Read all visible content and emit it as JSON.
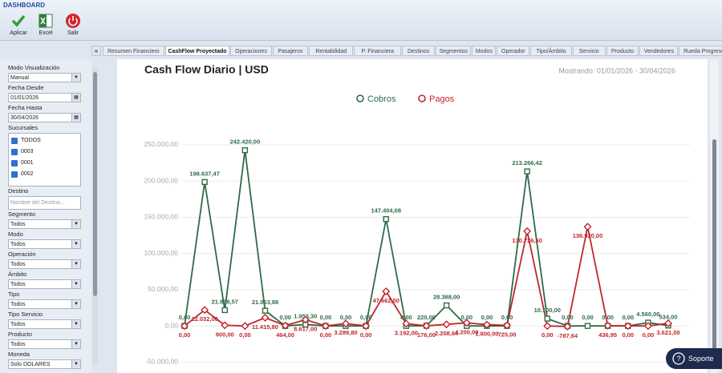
{
  "header": {
    "title": "DASHBOARD",
    "buttons": [
      "Aplicar",
      "Excel",
      "Salir"
    ]
  },
  "tabs": {
    "items": [
      "Resumen Financiero",
      "CashFlow Proyectado",
      "Operaciones",
      "Pasajeros",
      "Rentabilidad",
      "P. Financiera",
      "Destinos",
      "Segmentos",
      "Modos",
      "Operador",
      "Tipo/Ámbito",
      "Servicio",
      "Producto",
      "Vendedores",
      "Rueda Progreso"
    ],
    "active": 1
  },
  "sidebar": {
    "items": [
      {
        "label": "Modo Visualización",
        "value": "Manual",
        "kind": "select"
      },
      {
        "label": "Fecha Desde",
        "value": "01/01/2026",
        "kind": "date"
      },
      {
        "label": "Fecha Hasta",
        "value": "30/04/2026",
        "kind": "date"
      },
      {
        "label": "Sucursales",
        "options": [
          "TODOS",
          "0003",
          "0001",
          "0002"
        ],
        "kind": "checklist"
      },
      {
        "label": "Destino",
        "placeholder": "Nombre del Destino...",
        "kind": "text"
      },
      {
        "label": "Segmento",
        "value": "Todos",
        "kind": "select"
      },
      {
        "label": "Modo",
        "value": "Todos",
        "kind": "select"
      },
      {
        "label": "Operación",
        "value": "Todos",
        "kind": "select"
      },
      {
        "label": "Ámbito",
        "value": "Todos",
        "kind": "select"
      },
      {
        "label": "Tipo",
        "value": "Todos",
        "kind": "select"
      },
      {
        "label": "Tipo Servicio",
        "value": "Todos",
        "kind": "select"
      },
      {
        "label": "Producto",
        "value": "Todos",
        "kind": "select"
      },
      {
        "label": "Moneda",
        "value": "Solo DOLARES",
        "kind": "select"
      }
    ]
  },
  "support": "Soporte",
  "chart_data": {
    "type": "line",
    "title": "Cash Flow Diario | USD",
    "subtitle": "Mostrando: 01/01/2026 - 30/04/2026",
    "ylim": [
      -55000,
      262000
    ],
    "yticks": [
      {
        "value": -50000,
        "label": "-50.000,00"
      },
      {
        "value": 0,
        "label": "0,00"
      },
      {
        "value": 50000,
        "label": "50.000,00"
      },
      {
        "value": 100000,
        "label": "100.000,00"
      },
      {
        "value": 150000,
        "label": "150.000,00"
      },
      {
        "value": 200000,
        "label": "200.000,00"
      },
      {
        "value": 250000,
        "label": "250.000,00"
      }
    ],
    "grid": true,
    "legend": "top",
    "series": [
      {
        "name": "Cobros",
        "color": "#2e6b47",
        "marker": "square",
        "values": [
          0,
          198637.47,
          21838.57,
          242420,
          21063.88,
          0,
          1953.3,
          0,
          0,
          0,
          147404.08,
          0,
          220,
          28388,
          0,
          0,
          0,
          213266.42,
          10100,
          0,
          0,
          0,
          0,
          4560,
          534
        ],
        "value_labels": [
          "0,00",
          "198.637,47",
          "21.838,57",
          "242.420,00",
          "21.063,88",
          "0,00",
          "1.953,30",
          "0,00",
          "0,00",
          "0,00",
          "147.404,08",
          "0,00",
          "220,00",
          "28.388,00",
          "0,00",
          "0,00",
          "0,00",
          "213.266,42",
          "10.100,00",
          "0,00",
          "0,00",
          "0,00",
          "0,00",
          "4.560,00",
          "534,00"
        ]
      },
      {
        "name": "Pagos",
        "color": "#c0262b",
        "marker": "diamond",
        "values": [
          0,
          22032,
          900,
          0,
          11415.8,
          464,
          8617,
          0,
          3289.8,
          0,
          47662.5,
          3192,
          176,
          2208.64,
          4200,
          1800,
          725,
          130726.5,
          0,
          -787.64,
          136920,
          436.95,
          0,
          0,
          3621
        ],
        "value_labels": [
          "0,00",
          "22.032,00",
          "900,00",
          "0,00",
          "11.415,80",
          "464,00",
          "8.617,00",
          "0,00",
          "3.289,80",
          "0,00",
          "47.662,50",
          "3.192,00",
          "176,00",
          "2.208,64",
          "4.200,00",
          "1.800,00",
          "725,00",
          "130.726,50",
          "0,00",
          "-787,64",
          "136.920,00",
          "436,95",
          "0,00",
          "0,00",
          "3.621,00"
        ]
      }
    ]
  }
}
